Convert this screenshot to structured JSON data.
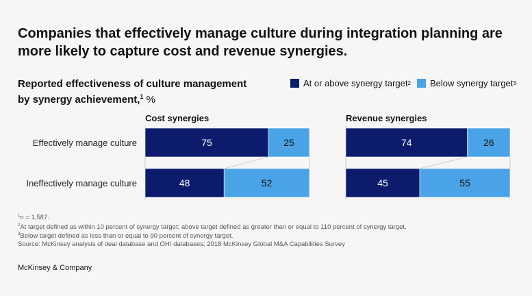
{
  "title": "Companies that effectively manage culture during integration planning are more likely to capture cost and revenue synergies.",
  "subtitle": {
    "line1": "Reported effectiveness of culture management",
    "line2": "by synergy achievement,",
    "sup": "1",
    "unit": " %"
  },
  "legend": [
    {
      "label": "At or above synergy target",
      "sup": "2",
      "color": "#0c1b6b"
    },
    {
      "label": "Below synergy target",
      "sup": "3",
      "color": "#4aa3e6"
    }
  ],
  "notes": {
    "n1": "n = 1,587.",
    "n2": "At target defined as within 10 percent of synergy target; above target defined as greater than or equal to 110 percent of synergy target.",
    "n3": "Below target defined as less than or equal to 90 percent of synergy target.",
    "source": " Source: McKinsey analysis of deal database and OHI databases; 2018 McKinsey Global M&A Capabilities Survey"
  },
  "brand": "McKinsey & Company",
  "chart_data": {
    "type": "bar",
    "stacked": true,
    "orientation": "horizontal",
    "categories": [
      "Effectively manage culture",
      "Ineffectively manage culture"
    ],
    "panels": [
      {
        "title": "Cost synergies",
        "series": [
          {
            "name": "At or above synergy target",
            "values": [
              75,
              48
            ]
          },
          {
            "name": "Below synergy target",
            "values": [
              25,
              52
            ]
          }
        ]
      },
      {
        "title": "Revenue synergies",
        "series": [
          {
            "name": "At or above synergy target",
            "values": [
              74,
              45
            ]
          },
          {
            "name": "Below synergy target",
            "values": [
              26,
              55
            ]
          }
        ]
      }
    ],
    "xlim": [
      0,
      100
    ]
  }
}
